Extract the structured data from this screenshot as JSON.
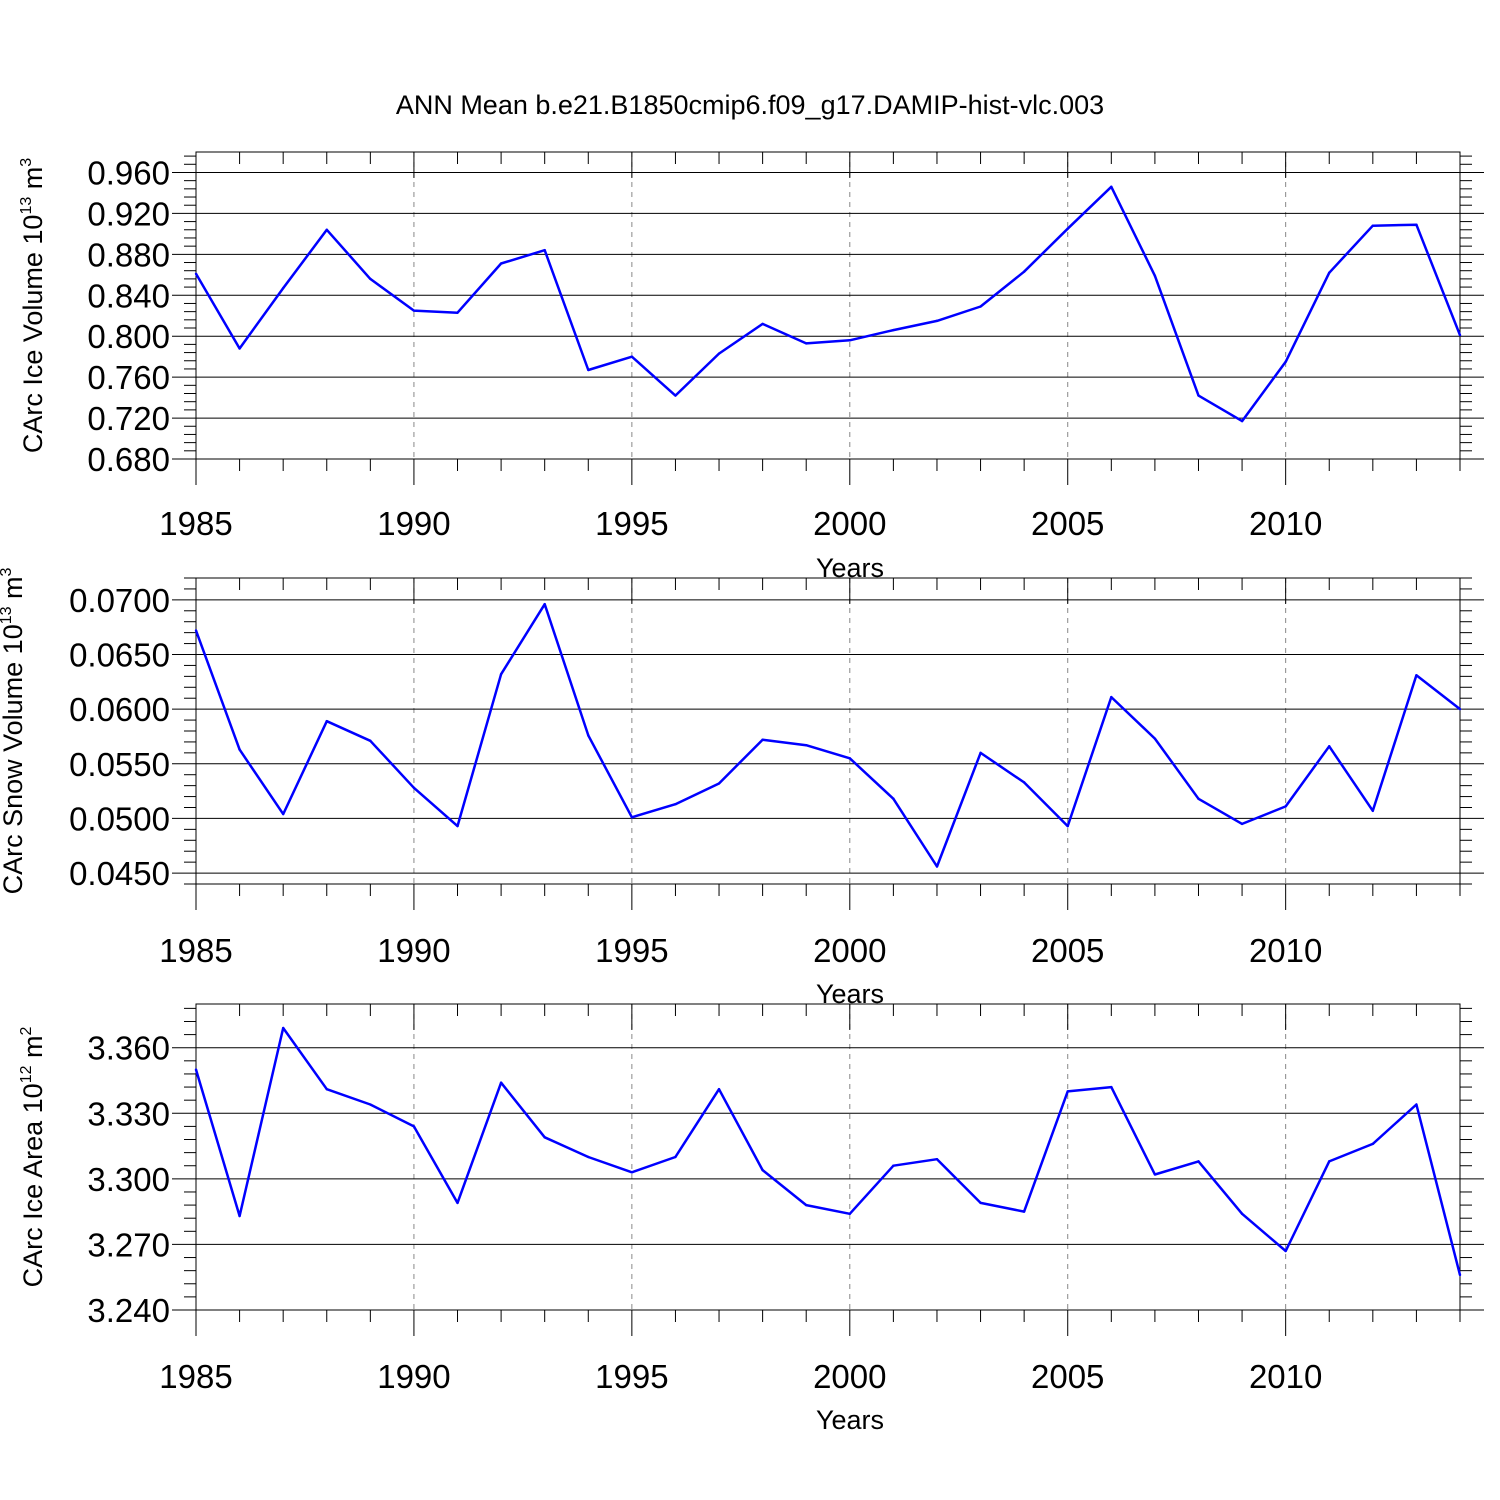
{
  "title": "ANN Mean b.e21.B1850cmip6.f09_g17.DAMIP-hist-vlc.003",
  "line_color": "#0000ff",
  "chart_data": [
    {
      "type": "line",
      "ylabel": "CArc Ice Volume 10",
      "ylabel_sup": "13",
      "ylabel_unit": "m",
      "ylabel_unit_sup": "3",
      "xlabel": "Years",
      "xlim": [
        1985,
        2014
      ],
      "ylim": [
        0.68,
        0.98
      ],
      "yticks": [
        "0.680",
        "0.720",
        "0.760",
        "0.800",
        "0.840",
        "0.880",
        "0.920",
        "0.960"
      ],
      "xticks": [
        "1985",
        "1990",
        "1995",
        "2000",
        "2005",
        "2010"
      ],
      "x": [
        1985,
        1986,
        1987,
        1988,
        1989,
        1990,
        1991,
        1992,
        1993,
        1994,
        1995,
        1996,
        1997,
        1998,
        1999,
        2000,
        2001,
        2002,
        2003,
        2004,
        2005,
        2006,
        2007,
        2008,
        2009,
        2010,
        2011,
        2012,
        2013,
        2014
      ],
      "values": [
        0.861,
        0.788,
        0.847,
        0.904,
        0.856,
        0.825,
        0.823,
        0.871,
        0.884,
        0.767,
        0.78,
        0.742,
        0.783,
        0.812,
        0.793,
        0.796,
        0.806,
        0.815,
        0.829,
        0.863,
        0.905,
        0.946,
        0.859,
        0.742,
        0.717,
        0.775,
        0.862,
        0.908,
        0.909,
        0.801
      ]
    },
    {
      "type": "line",
      "ylabel": "CArc Snow Volume 10",
      "ylabel_sup": "13",
      "ylabel_unit": "m",
      "ylabel_unit_sup": "3",
      "xlabel": "Years",
      "xlim": [
        1985,
        2014
      ],
      "ylim": [
        0.044,
        0.072
      ],
      "yticks": [
        "0.0450",
        "0.0500",
        "0.0550",
        "0.0600",
        "0.0650",
        "0.0700"
      ],
      "xticks": [
        "1985",
        "1990",
        "1995",
        "2000",
        "2005",
        "2010"
      ],
      "x": [
        1985,
        1986,
        1987,
        1988,
        1989,
        1990,
        1991,
        1992,
        1993,
        1994,
        1995,
        1996,
        1997,
        1998,
        1999,
        2000,
        2001,
        2002,
        2003,
        2004,
        2005,
        2006,
        2007,
        2008,
        2009,
        2010,
        2011,
        2012,
        2013,
        2014
      ],
      "values": [
        0.0672,
        0.0563,
        0.0504,
        0.0589,
        0.0571,
        0.0528,
        0.0493,
        0.0632,
        0.0696,
        0.0576,
        0.0501,
        0.0513,
        0.0532,
        0.0572,
        0.0567,
        0.0555,
        0.0518,
        0.0456,
        0.056,
        0.0533,
        0.0493,
        0.0611,
        0.0573,
        0.0518,
        0.0495,
        0.0511,
        0.0566,
        0.0507,
        0.0631,
        0.06
      ]
    },
    {
      "type": "line",
      "ylabel": "CArc Ice Area 10",
      "ylabel_sup": "12",
      "ylabel_unit": "m",
      "ylabel_unit_sup": "2",
      "xlabel": "Years",
      "xlim": [
        1985,
        2014
      ],
      "ylim": [
        3.24,
        3.38
      ],
      "yticks": [
        "3.240",
        "3.270",
        "3.300",
        "3.330",
        "3.360"
      ],
      "xticks": [
        "1985",
        "1990",
        "1995",
        "2000",
        "2005",
        "2010"
      ],
      "x": [
        1985,
        1986,
        1987,
        1988,
        1989,
        1990,
        1991,
        1992,
        1993,
        1994,
        1995,
        1996,
        1997,
        1998,
        1999,
        2000,
        2001,
        2002,
        2003,
        2004,
        2005,
        2006,
        2007,
        2008,
        2009,
        2010,
        2011,
        2012,
        2013,
        2014
      ],
      "values": [
        3.35,
        3.283,
        3.369,
        3.341,
        3.334,
        3.324,
        3.289,
        3.344,
        3.319,
        3.31,
        3.303,
        3.31,
        3.341,
        3.304,
        3.288,
        3.284,
        3.306,
        3.309,
        3.289,
        3.285,
        3.34,
        3.342,
        3.302,
        3.308,
        3.284,
        3.267,
        3.308,
        3.316,
        3.334,
        3.256
      ]
    }
  ]
}
